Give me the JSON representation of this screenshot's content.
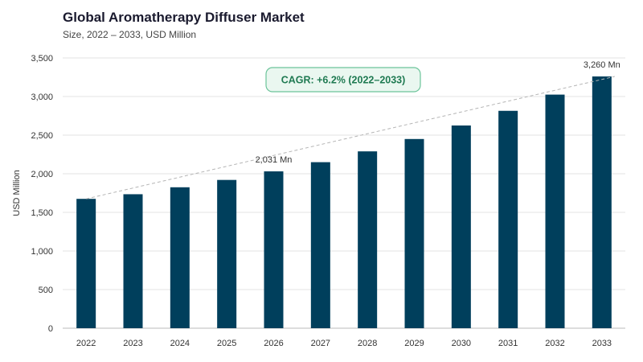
{
  "chart_data": {
    "type": "bar",
    "title": "Global Aromatherapy Diffuser Market",
    "subtitle": "Size, 2022 – 2033, USD Million",
    "ylabel": "USD Million",
    "xlabel": "",
    "categories": [
      "2022",
      "2023",
      "2024",
      "2025",
      "2026",
      "2027",
      "2028",
      "2029",
      "2030",
      "2031",
      "2032",
      "2033"
    ],
    "values": [
      1675,
      1735,
      1825,
      1920,
      2031,
      2150,
      2290,
      2450,
      2625,
      2815,
      3025,
      3260
    ],
    "ylim": [
      0,
      3500
    ],
    "yticks": [
      0,
      500,
      1000,
      1500,
      2000,
      2500,
      3000,
      3500
    ],
    "ytick_labels": [
      "0",
      "500",
      "1,000",
      "1,500",
      "2,000",
      "2,500",
      "3,000",
      "3,500"
    ],
    "grid": true,
    "bar_color": "#003f5c",
    "data_labels": [
      {
        "category": "2026",
        "text": "2,031 Mn"
      },
      {
        "category": "2033",
        "text": "3,260 Mn"
      }
    ],
    "annotation": {
      "text": "CAGR: +6.2% (2022–2033)",
      "color": "#1f7a52",
      "fill": "#eaf7f0",
      "border": "#6cc49a"
    }
  }
}
